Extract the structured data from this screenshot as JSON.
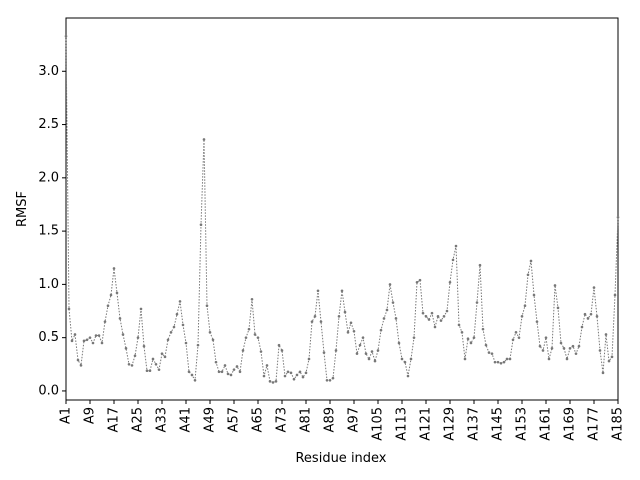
{
  "chart_data": {
    "type": "line",
    "x_label": "Residue index",
    "y_label": "RMSF",
    "categories": [
      "A1",
      null,
      null,
      null,
      null,
      null,
      null,
      null,
      "A9",
      null,
      null,
      null,
      null,
      null,
      null,
      null,
      "A17",
      null,
      null,
      null,
      null,
      null,
      null,
      null,
      "A25",
      null,
      null,
      null,
      null,
      null,
      null,
      null,
      "A33",
      null,
      null,
      null,
      null,
      null,
      null,
      null,
      "A41",
      null,
      null,
      null,
      null,
      null,
      null,
      null,
      "A49",
      null,
      null,
      null,
      null,
      null,
      null,
      null,
      "A57",
      null,
      null,
      null,
      null,
      null,
      null,
      null,
      "A65",
      null,
      null,
      null,
      null,
      null,
      null,
      null,
      "A73",
      null,
      null,
      null,
      null,
      null,
      null,
      null,
      "A81",
      null,
      null,
      null,
      null,
      null,
      null,
      null,
      "A89",
      null,
      null,
      null,
      null,
      null,
      null,
      null,
      "A97",
      null,
      null,
      null,
      null,
      null,
      null,
      null,
      "A105",
      null,
      null,
      null,
      null,
      null,
      null,
      null,
      "A113",
      null,
      null,
      null,
      null,
      null,
      null,
      null,
      "A121",
      null,
      null,
      null,
      null,
      null,
      null,
      null,
      "A129",
      null,
      null,
      null,
      null,
      null,
      null,
      null,
      "A137",
      null,
      null,
      null,
      null,
      null,
      null,
      null,
      "A145",
      null,
      null,
      null,
      null,
      null,
      null,
      null,
      "A153",
      null,
      null,
      null,
      null,
      null,
      null,
      null,
      "A161",
      null,
      null,
      null,
      null,
      null,
      null,
      null,
      "A169",
      null,
      null,
      null,
      null,
      null,
      null,
      null,
      "A177",
      null,
      null,
      null,
      null,
      null,
      null,
      null,
      "A185"
    ],
    "values": [
      3.33,
      0.77,
      0.47,
      0.53,
      0.29,
      0.24,
      0.47,
      0.48,
      0.5,
      0.45,
      0.52,
      0.52,
      0.45,
      0.65,
      0.8,
      0.9,
      1.15,
      0.92,
      0.68,
      0.53,
      0.4,
      0.25,
      0.24,
      0.33,
      0.5,
      0.77,
      0.42,
      0.19,
      0.19,
      0.3,
      0.25,
      0.2,
      0.35,
      0.32,
      0.48,
      0.55,
      0.6,
      0.72,
      0.84,
      0.62,
      0.45,
      0.18,
      0.15,
      0.1,
      0.43,
      1.56,
      2.36,
      0.8,
      0.55,
      0.48,
      0.27,
      0.18,
      0.18,
      0.24,
      0.16,
      0.15,
      0.2,
      0.23,
      0.18,
      0.38,
      0.5,
      0.58,
      0.86,
      0.53,
      0.5,
      0.37,
      0.14,
      0.24,
      0.09,
      0.08,
      0.09,
      0.43,
      0.38,
      0.14,
      0.18,
      0.17,
      0.11,
      0.15,
      0.18,
      0.13,
      0.17,
      0.3,
      0.65,
      0.7,
      0.94,
      0.65,
      0.36,
      0.1,
      0.1,
      0.12,
      0.38,
      0.7,
      0.94,
      0.74,
      0.55,
      0.64,
      0.56,
      0.35,
      0.43,
      0.5,
      0.35,
      0.3,
      0.37,
      0.28,
      0.38,
      0.57,
      0.68,
      0.76,
      1.0,
      0.83,
      0.68,
      0.45,
      0.3,
      0.27,
      0.14,
      0.3,
      0.5,
      1.02,
      1.04,
      0.73,
      0.7,
      0.67,
      0.73,
      0.6,
      0.7,
      0.66,
      0.7,
      0.75,
      1.02,
      1.23,
      1.36,
      0.62,
      0.55,
      0.3,
      0.49,
      0.45,
      0.5,
      0.83,
      1.18,
      0.58,
      0.43,
      0.36,
      0.35,
      0.27,
      0.27,
      0.26,
      0.27,
      0.3,
      0.3,
      0.48,
      0.55,
      0.5,
      0.7,
      0.8,
      1.09,
      1.22,
      0.9,
      0.65,
      0.42,
      0.38,
      0.5,
      0.3,
      0.4,
      0.99,
      0.78,
      0.45,
      0.4,
      0.3,
      0.4,
      0.42,
      0.35,
      0.42,
      0.6,
      0.72,
      0.68,
      0.72,
      0.97,
      0.7,
      0.38,
      0.17,
      0.53,
      0.28,
      0.32,
      0.9,
      1.63
    ],
    "color": "#777777",
    "ylim": [
      -0.085,
      3.5
    ],
    "yticks": [
      {
        "value": 0,
        "label": "0.0"
      },
      {
        "value": 0.5,
        "label": "0.5"
      },
      {
        "value": 1,
        "label": "1.0"
      },
      {
        "value": 1.5,
        "label": "1.5"
      },
      {
        "value": 2,
        "label": "2.0"
      },
      {
        "value": 2.5,
        "label": "2.5"
      },
      {
        "value": 3,
        "label": "3.0"
      }
    ],
    "grid": false
  }
}
